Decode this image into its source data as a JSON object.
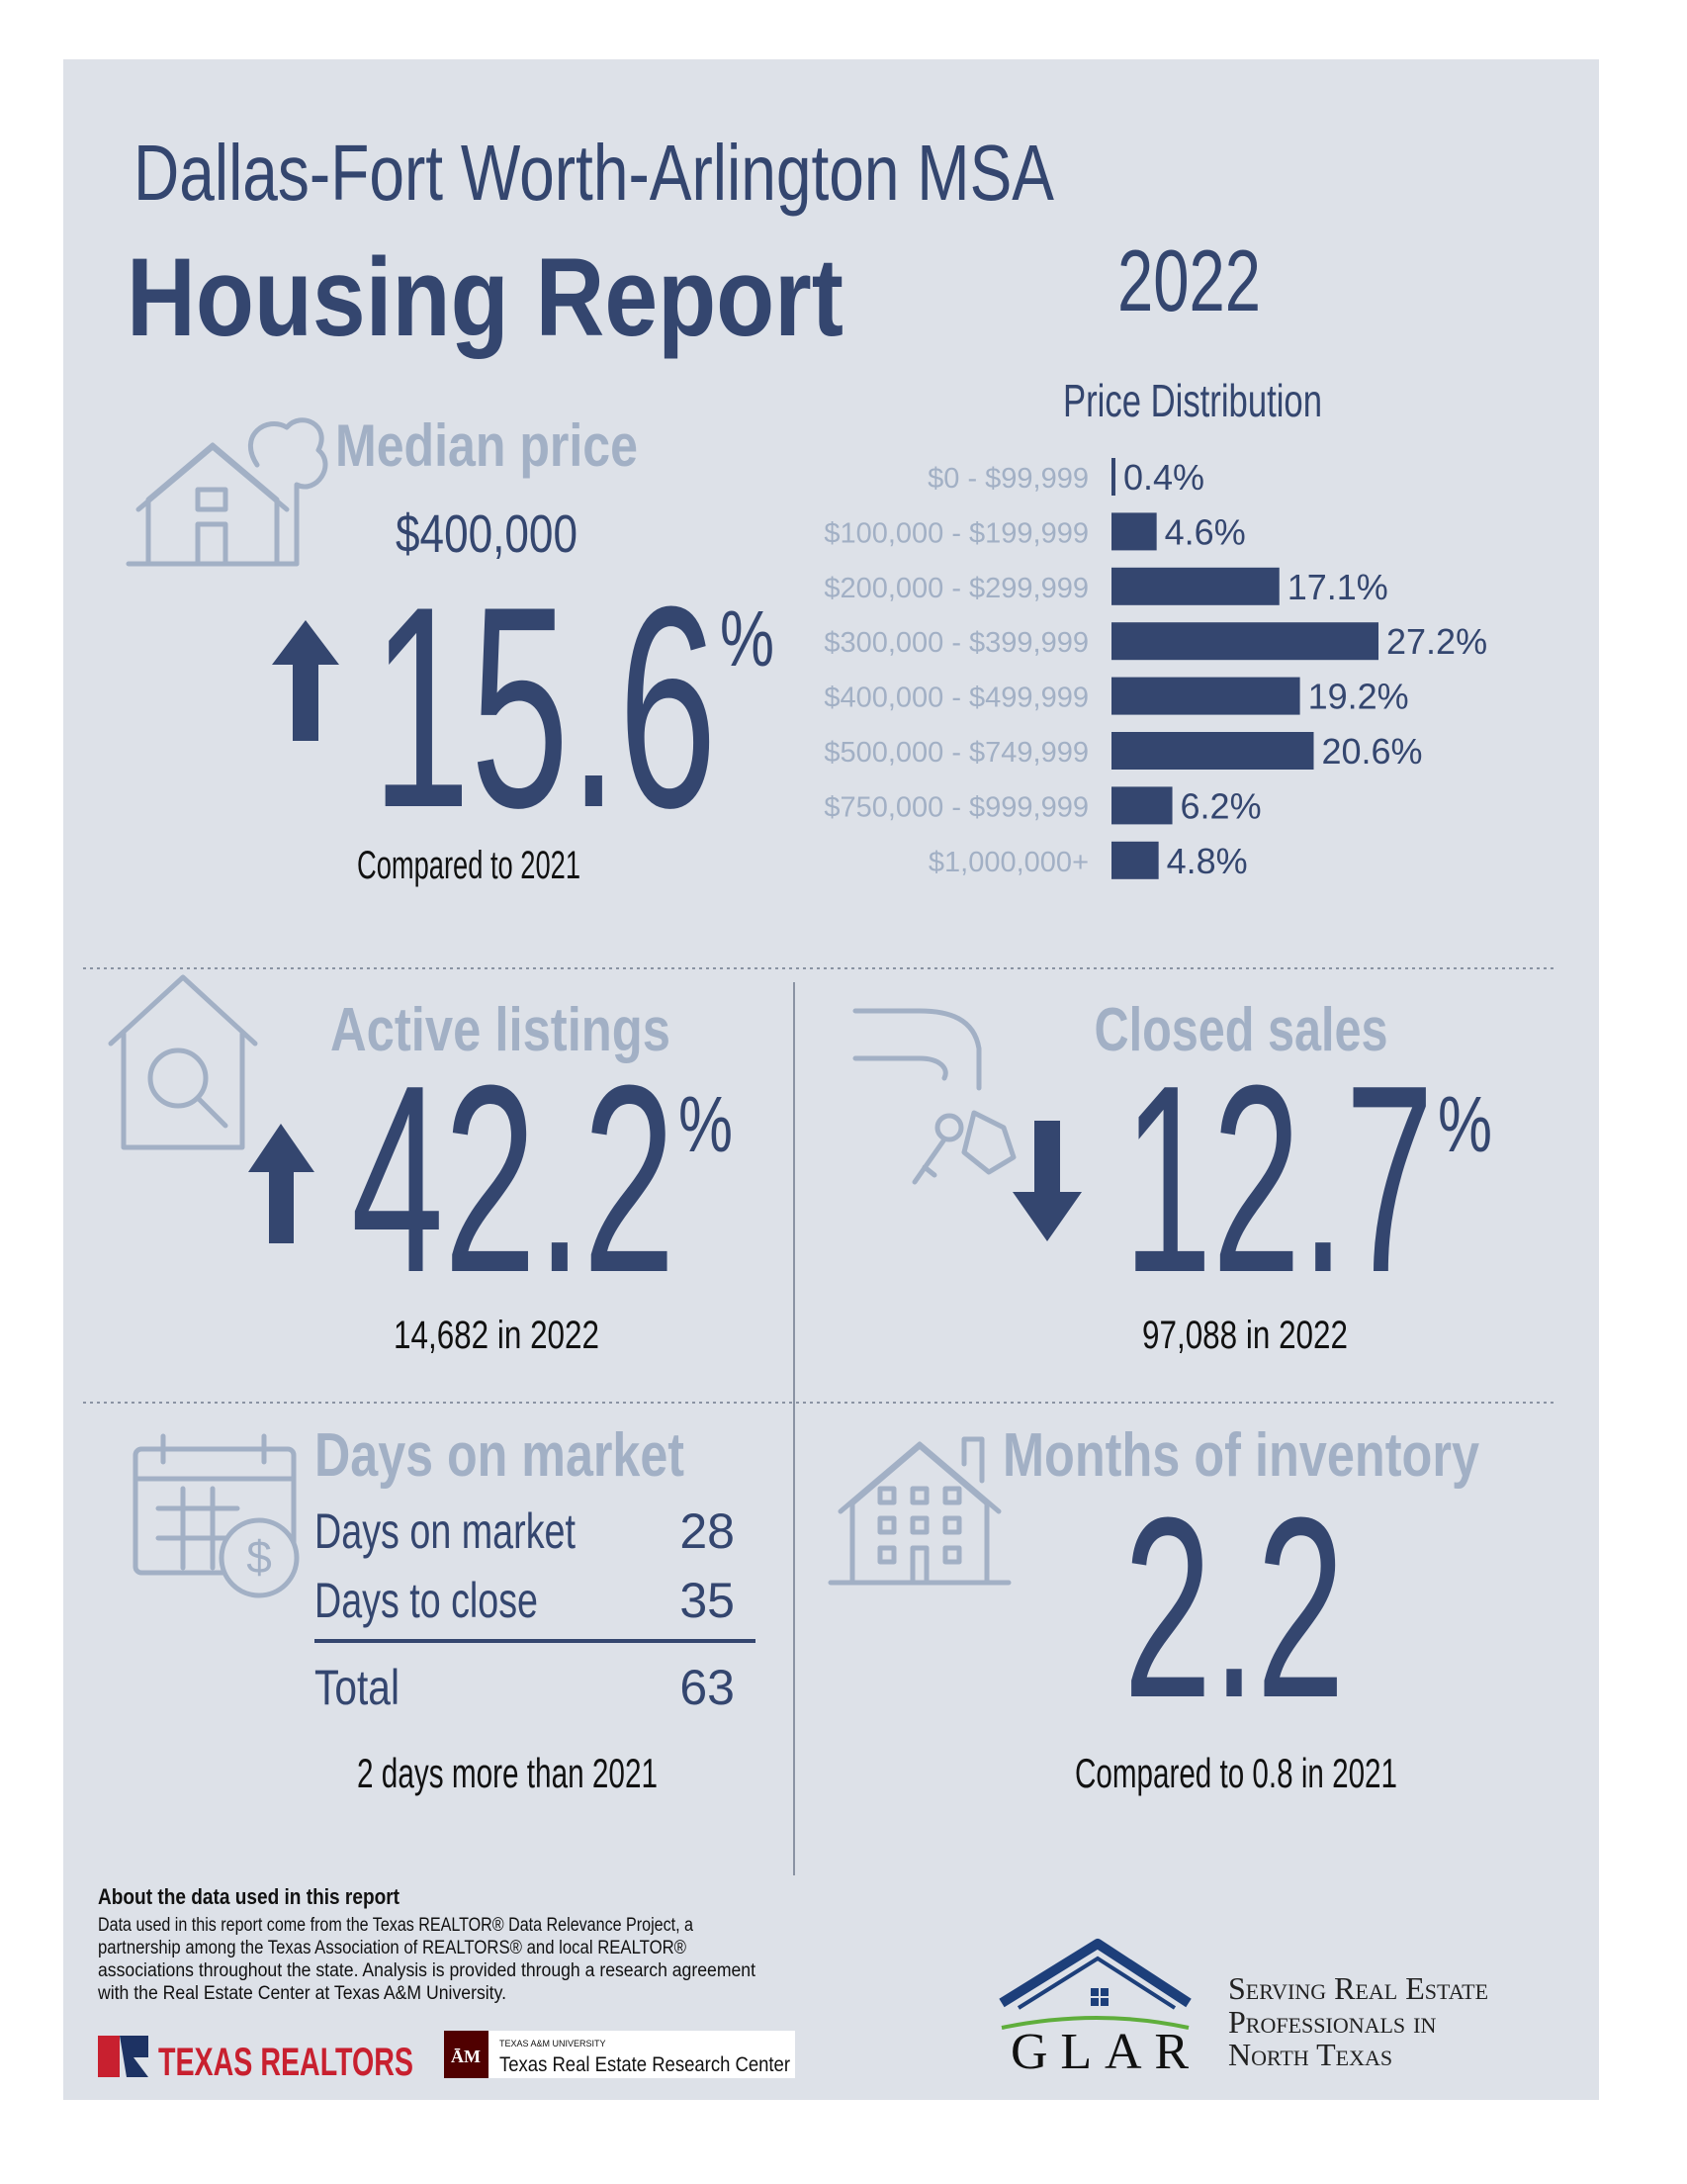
{
  "header": {
    "region": "Dallas-Fort Worth-Arlington MSA",
    "title": "Housing Report",
    "year": "2022"
  },
  "median_price": {
    "title": "Median price",
    "price": "$400,000",
    "change": "15.6",
    "unit": "%",
    "note": "Compared to 2021"
  },
  "chart_data": {
    "type": "bar",
    "title": "Price Distribution",
    "categories": [
      "$0 - $99,999",
      "$100,000 - $199,999",
      "$200,000 - $299,999",
      "$300,000 - $399,999",
      "$400,000 - $499,999",
      "$500,000 - $749,999",
      "$750,000 - $999,999",
      "$1,000,000+"
    ],
    "values": [
      0.4,
      4.6,
      17.1,
      27.2,
      19.2,
      20.6,
      6.2,
      4.8
    ],
    "value_labels": [
      "0.4%",
      "4.6%",
      "17.1%",
      "27.2%",
      "19.2%",
      "20.6%",
      "6.2%",
      "4.8%"
    ],
    "color": "#34466f",
    "orientation": "horizontal"
  },
  "active_listings": {
    "title": "Active listings",
    "change": "42.2",
    "unit": "%",
    "note": "14,682 in 2022"
  },
  "closed_sales": {
    "title": "Closed sales",
    "change": "12.7",
    "unit": "%",
    "note": "97,088 in 2022"
  },
  "days_on_market": {
    "title": "Days on market",
    "rows": [
      [
        "Days on market",
        "28"
      ],
      [
        "Days to close",
        "35"
      ]
    ],
    "total": [
      "Total",
      "63"
    ],
    "note": "2 days more than 2021"
  },
  "months_of_inventory": {
    "title": "Months of inventory",
    "value": "2.2",
    "note": "Compared to 0.8 in 2021"
  },
  "footer": {
    "about_title": "About the data used in this report",
    "about_lines": [
      "Data used in this report come from the Texas REALTOR® Data Relevance Project, a",
      "partnership among the Texas Association of REALTORS® and local REALTOR®",
      "associations throughout the state. Analysis is provided through a research agreement",
      "with the Real Estate Center at Texas A&M University."
    ],
    "texas_realtors": "TEXAS REALTORS",
    "tamu_small": "TEXAS A&M UNIVERSITY",
    "tamu_center": "Texas Real Estate Research Center",
    "glar": "GLAR",
    "tagline": [
      "Serving Real Estate",
      "Professionals in",
      "North Texas"
    ]
  }
}
